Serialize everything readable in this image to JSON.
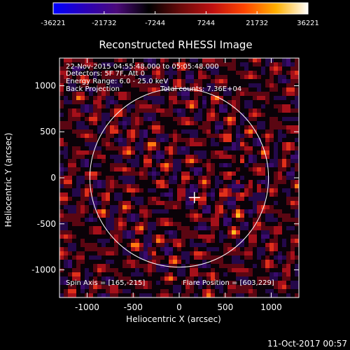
{
  "colorbar": {
    "ticks": [
      "-36221",
      "-21732",
      "-7244",
      "7244",
      "21732",
      "36221"
    ],
    "colors": [
      "#0000ff",
      "#2a00b8",
      "#4b0a7a",
      "#000000",
      "#6a0a0a",
      "#c01010",
      "#ff4500",
      "#ffb000",
      "#ffffff"
    ]
  },
  "chart_data": {
    "type": "heatmap",
    "title": "Reconstructed RHESSI Image",
    "xlabel": "Heliocentric X (arcsec)",
    "ylabel": "Heliocentric Y (arcsec)",
    "xlim": [
      -1300,
      1300
    ],
    "ylim": [
      -1300,
      1300
    ],
    "xticks": [
      {
        "value": -1000,
        "label": "-1000"
      },
      {
        "value": -500,
        "label": "-500"
      },
      {
        "value": 0,
        "label": "0"
      },
      {
        "value": 500,
        "label": "500"
      },
      {
        "value": 1000,
        "label": "1000"
      }
    ],
    "yticks": [
      {
        "value": 1000,
        "label": "1000"
      },
      {
        "value": 500,
        "label": "500"
      },
      {
        "value": 0,
        "label": "0"
      },
      {
        "value": -500,
        "label": "-500"
      },
      {
        "value": -1000,
        "label": "-1000"
      }
    ],
    "solar_disk": {
      "center": [
        0,
        0
      ],
      "radius": 970
    },
    "marker": {
      "x": 165,
      "y": -215,
      "symbol": "cross"
    },
    "hot_spots": [
      {
        "x": 150,
        "y": -220
      },
      {
        "x": 680,
        "y": 380
      },
      {
        "x": 700,
        "y": 200
      },
      {
        "x": 640,
        "y": -50
      },
      {
        "x": 760,
        "y": -300
      },
      {
        "x": -950,
        "y": 150
      },
      {
        "x": -300,
        "y": -800
      },
      {
        "x": 880,
        "y": -120
      }
    ],
    "annotations": {
      "time": "22-Nov-2015 04:55:48.000 to 05:05:48.000",
      "detectors": "Detectors: 5F 7F, Att 0",
      "energy": "Energy Range: 6.0 - 25.0 keV",
      "method": "Back Projection",
      "counts": "Total counts: 7.36E+04",
      "spin_axis": "Spin Axis = [165,-215]",
      "flare_position": "Flare Position = [603,229]"
    }
  },
  "footer": {
    "date": "11-Oct-2017 00:57"
  }
}
